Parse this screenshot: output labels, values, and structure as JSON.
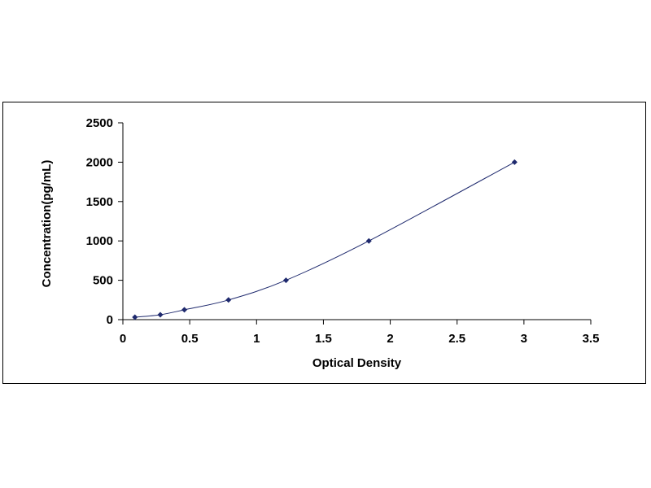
{
  "chart_data": {
    "type": "scatter",
    "title": "",
    "xlabel": "Optical Density",
    "ylabel": "Concentration(pg/mL)",
    "xlim": [
      0,
      3.5
    ],
    "ylim": [
      0,
      2500
    ],
    "x_ticks": [
      "0",
      "0.5",
      "1",
      "1.5",
      "2",
      "2.5",
      "3",
      "3.5"
    ],
    "y_ticks": [
      "0",
      "500",
      "1000",
      "1500",
      "2000",
      "2500"
    ],
    "grid": false,
    "legend": "none",
    "series": [
      {
        "x": [
          0.09,
          0.28,
          0.46,
          0.79,
          1.22,
          1.84,
          2.93
        ],
        "y": [
          31.25,
          62.5,
          125,
          250,
          500,
          1000,
          2000
        ],
        "marker": "diamond",
        "marker_color": "#1f2a6e",
        "line": "smooth",
        "line_color": "#1f2a6e"
      }
    ]
  }
}
